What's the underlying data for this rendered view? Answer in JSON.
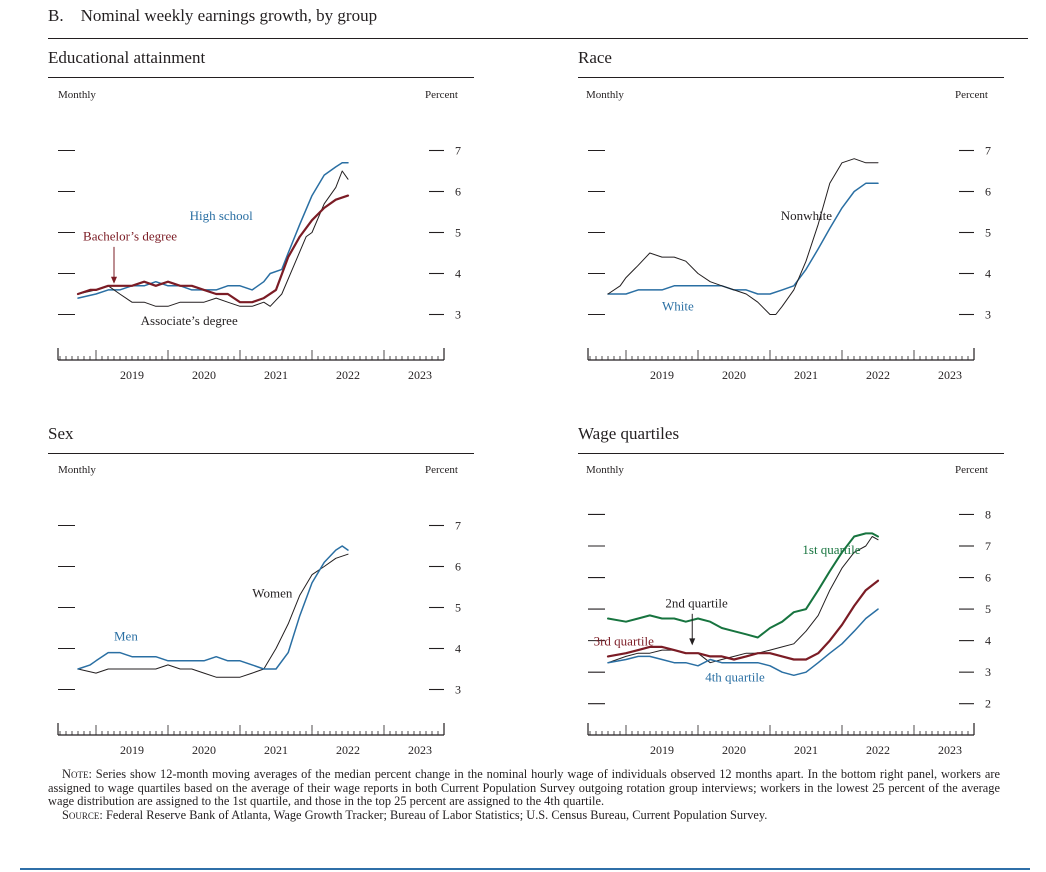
{
  "figure_title": "B. Nominal weekly earnings growth, by group",
  "notes": {
    "note_label": "Note:",
    "note_text": "Series show 12-month moving averages of the median percent change in the nominal hourly wage of individuals observed 12 months apart. In the bottom right panel, workers are assigned to wage quartiles based on the average of their wage reports in both Current Population Survey outgoing rotation group interviews; workers in the lowest 25 percent of the average wage distribution are assigned to the 1st quartile, and those in the top 25 percent are assigned to the 4th quartile.",
    "source_label": "Source:",
    "source_text": "Federal Reserve Bank of Atlanta, Wage Growth Tracker; Bureau of Labor Statistics; U.S. Census Bureau, Current Population Survey."
  },
  "chart_data": [
    {
      "type": "line",
      "title": "Educational attainment",
      "left_label": "Monthly",
      "right_label": "Percent",
      "ylim": [
        2.5,
        7.5
      ],
      "yticks": [
        3,
        4,
        5,
        6,
        7
      ],
      "xlim": [
        2018.5,
        2023.75
      ],
      "xticks": [
        "2019",
        "2020",
        "2021",
        "2022",
        "2023"
      ],
      "series": [
        {
          "name": "High school",
          "color": "#2a6fa3",
          "width": 1.5,
          "x": [
            2018.75,
            2019.0,
            2019.17,
            2019.33,
            2019.5,
            2019.67,
            2019.83,
            2020.0,
            2020.17,
            2020.33,
            2020.5,
            2020.67,
            2020.83,
            2021.0,
            2021.17,
            2021.33,
            2021.42,
            2021.58,
            2021.67,
            2021.83,
            2022.0,
            2022.17,
            2022.33,
            2022.42,
            2022.5
          ],
          "y": [
            3.4,
            3.5,
            3.6,
            3.6,
            3.7,
            3.7,
            3.8,
            3.7,
            3.7,
            3.6,
            3.6,
            3.6,
            3.7,
            3.7,
            3.6,
            3.8,
            4.0,
            4.1,
            4.5,
            5.2,
            5.9,
            6.4,
            6.6,
            6.7,
            6.7
          ]
        },
        {
          "name": "Associate’s degree",
          "color": "#231f20",
          "width": 1.0,
          "x": [
            2018.75,
            2019.0,
            2019.17,
            2019.33,
            2019.5,
            2019.67,
            2019.83,
            2020.0,
            2020.17,
            2020.33,
            2020.5,
            2020.67,
            2020.83,
            2021.0,
            2021.17,
            2021.33,
            2021.42,
            2021.58,
            2021.75,
            2021.92,
            2022.0,
            2022.17,
            2022.33,
            2022.42,
            2022.5
          ],
          "y": [
            3.5,
            3.6,
            3.7,
            3.5,
            3.3,
            3.3,
            3.2,
            3.2,
            3.3,
            3.3,
            3.3,
            3.4,
            3.3,
            3.2,
            3.2,
            3.3,
            3.2,
            3.5,
            4.2,
            4.9,
            5.0,
            5.7,
            6.1,
            6.5,
            6.3
          ]
        },
        {
          "name": "Bachelor’s degree",
          "color": "#7b1c25",
          "width": 2.2,
          "x": [
            2018.75,
            2018.92,
            2019.0,
            2019.17,
            2019.33,
            2019.5,
            2019.67,
            2019.83,
            2020.0,
            2020.17,
            2020.33,
            2020.5,
            2020.67,
            2020.83,
            2021.0,
            2021.17,
            2021.33,
            2021.5,
            2021.67,
            2021.83,
            2022.0,
            2022.17,
            2022.33,
            2022.5
          ],
          "y": [
            3.5,
            3.6,
            3.6,
            3.7,
            3.7,
            3.7,
            3.8,
            3.7,
            3.8,
            3.7,
            3.7,
            3.6,
            3.5,
            3.5,
            3.3,
            3.3,
            3.4,
            3.6,
            4.4,
            4.9,
            5.3,
            5.6,
            5.8,
            5.9
          ]
        }
      ],
      "annotations": [
        {
          "text": "High school",
          "x": 2020.3,
          "y": 5.3,
          "anchor": "start",
          "color": "#2a6fa3"
        },
        {
          "text": "Bachelor’s degree",
          "x": 2018.82,
          "y": 4.8,
          "anchor": "start",
          "color": "#7b1c25"
        },
        {
          "text": "Associate’s degree",
          "x": 2019.62,
          "y": 2.75,
          "anchor": "start",
          "color": "#231f20"
        }
      ],
      "arrows": [
        {
          "x": 2019.25,
          "y1": 4.65,
          "y2": 3.75,
          "color": "#7b1c25"
        }
      ]
    },
    {
      "type": "line",
      "title": "Race",
      "left_label": "Monthly",
      "right_label": "Percent",
      "ylim": [
        2.5,
        7.5
      ],
      "yticks": [
        3,
        4,
        5,
        6,
        7
      ],
      "xlim": [
        2018.5,
        2023.75
      ],
      "xticks": [
        "2019",
        "2020",
        "2021",
        "2022",
        "2023"
      ],
      "series": [
        {
          "name": "White",
          "color": "#2a6fa3",
          "width": 1.5,
          "x": [
            2018.75,
            2019.0,
            2019.17,
            2019.33,
            2019.5,
            2019.67,
            2019.83,
            2020.0,
            2020.17,
            2020.33,
            2020.5,
            2020.67,
            2020.83,
            2021.0,
            2021.17,
            2021.33,
            2021.5,
            2021.67,
            2021.83,
            2022.0,
            2022.17,
            2022.33,
            2022.42,
            2022.5
          ],
          "y": [
            3.5,
            3.5,
            3.6,
            3.6,
            3.6,
            3.7,
            3.7,
            3.7,
            3.7,
            3.7,
            3.6,
            3.6,
            3.5,
            3.5,
            3.6,
            3.7,
            4.1,
            4.6,
            5.1,
            5.6,
            6.0,
            6.2,
            6.2,
            6.2
          ]
        },
        {
          "name": "Nonwhite",
          "color": "#231f20",
          "width": 1.0,
          "x": [
            2018.75,
            2018.92,
            2019.0,
            2019.17,
            2019.33,
            2019.5,
            2019.67,
            2019.83,
            2020.0,
            2020.17,
            2020.33,
            2020.5,
            2020.67,
            2020.83,
            2021.0,
            2021.08,
            2021.17,
            2021.33,
            2021.5,
            2021.67,
            2021.83,
            2022.0,
            2022.17,
            2022.33,
            2022.5
          ],
          "y": [
            3.5,
            3.7,
            3.9,
            4.2,
            4.5,
            4.4,
            4.4,
            4.3,
            4.0,
            3.8,
            3.7,
            3.6,
            3.5,
            3.3,
            3.0,
            3.0,
            3.2,
            3.6,
            4.3,
            5.2,
            6.2,
            6.7,
            6.8,
            6.7,
            6.7
          ]
        }
      ],
      "annotations": [
        {
          "text": "Nonwhite",
          "x": 2021.15,
          "y": 5.3,
          "anchor": "start",
          "color": "#231f20"
        },
        {
          "text": "White",
          "x": 2019.5,
          "y": 3.1,
          "anchor": "start",
          "color": "#2a6fa3"
        }
      ],
      "arrows": []
    },
    {
      "type": "line",
      "title": "Sex",
      "left_label": "Monthly",
      "right_label": "Percent",
      "ylim": [
        2.5,
        7.5
      ],
      "yticks": [
        3,
        4,
        5,
        6,
        7
      ],
      "xlim": [
        2018.5,
        2023.75
      ],
      "xticks": [
        "2019",
        "2020",
        "2021",
        "2022",
        "2023"
      ],
      "series": [
        {
          "name": "Women",
          "color": "#231f20",
          "width": 1.0,
          "x": [
            2018.75,
            2019.0,
            2019.17,
            2019.33,
            2019.5,
            2019.67,
            2019.83,
            2020.0,
            2020.17,
            2020.33,
            2020.5,
            2020.67,
            2020.83,
            2021.0,
            2021.17,
            2021.33,
            2021.5,
            2021.67,
            2021.83,
            2022.0,
            2022.17,
            2022.33,
            2022.5
          ],
          "y": [
            3.5,
            3.4,
            3.5,
            3.5,
            3.5,
            3.5,
            3.5,
            3.6,
            3.5,
            3.5,
            3.4,
            3.3,
            3.3,
            3.3,
            3.4,
            3.5,
            4.0,
            4.6,
            5.3,
            5.8,
            6.0,
            6.2,
            6.3
          ]
        },
        {
          "name": "Men",
          "color": "#2a6fa3",
          "width": 1.5,
          "x": [
            2018.75,
            2018.92,
            2019.0,
            2019.17,
            2019.33,
            2019.5,
            2019.67,
            2019.83,
            2020.0,
            2020.17,
            2020.33,
            2020.5,
            2020.67,
            2020.83,
            2021.0,
            2021.17,
            2021.33,
            2021.5,
            2021.67,
            2021.83,
            2022.0,
            2022.17,
            2022.33,
            2022.42,
            2022.5
          ],
          "y": [
            3.5,
            3.6,
            3.7,
            3.9,
            3.9,
            3.8,
            3.8,
            3.8,
            3.7,
            3.7,
            3.7,
            3.7,
            3.8,
            3.7,
            3.7,
            3.6,
            3.5,
            3.5,
            3.9,
            4.8,
            5.6,
            6.1,
            6.4,
            6.5,
            6.4
          ]
        }
      ],
      "annotations": [
        {
          "text": "Women",
          "x": 2021.17,
          "y": 5.25,
          "anchor": "start",
          "color": "#231f20"
        },
        {
          "text": "Men",
          "x": 2019.25,
          "y": 4.2,
          "anchor": "start",
          "color": "#2a6fa3"
        }
      ],
      "arrows": []
    },
    {
      "type": "line",
      "title": "Wage quartiles",
      "left_label": "Monthly",
      "right_label": "Percent",
      "ylim": [
        1.8,
        8.3
      ],
      "yticks": [
        2,
        3,
        4,
        5,
        6,
        7,
        8
      ],
      "xlim": [
        2018.5,
        2023.75
      ],
      "xticks": [
        "2019",
        "2020",
        "2021",
        "2022",
        "2023"
      ],
      "series": [
        {
          "name": "1st quartile",
          "color": "#17743f",
          "width": 2.0,
          "x": [
            2018.75,
            2019.0,
            2019.17,
            2019.33,
            2019.5,
            2019.67,
            2019.83,
            2020.0,
            2020.17,
            2020.33,
            2020.5,
            2020.67,
            2020.83,
            2021.0,
            2021.17,
            2021.33,
            2021.5,
            2021.67,
            2021.83,
            2022.0,
            2022.17,
            2022.33,
            2022.42,
            2022.5
          ],
          "y": [
            4.7,
            4.6,
            4.7,
            4.8,
            4.7,
            4.7,
            4.6,
            4.7,
            4.6,
            4.4,
            4.3,
            4.2,
            4.1,
            4.4,
            4.6,
            4.9,
            5.0,
            5.6,
            6.2,
            6.8,
            7.3,
            7.4,
            7.4,
            7.3
          ]
        },
        {
          "name": "2nd quartile",
          "color": "#231f20",
          "width": 1.0,
          "x": [
            2018.75,
            2019.0,
            2019.17,
            2019.33,
            2019.5,
            2019.67,
            2019.83,
            2020.0,
            2020.17,
            2020.33,
            2020.5,
            2020.67,
            2020.83,
            2021.0,
            2021.17,
            2021.33,
            2021.5,
            2021.67,
            2021.83,
            2022.0,
            2022.17,
            2022.33,
            2022.42,
            2022.5
          ],
          "y": [
            3.3,
            3.5,
            3.6,
            3.6,
            3.7,
            3.7,
            3.6,
            3.6,
            3.3,
            3.4,
            3.5,
            3.6,
            3.6,
            3.7,
            3.8,
            3.9,
            4.3,
            4.8,
            5.6,
            6.3,
            6.8,
            7.0,
            7.3,
            7.2
          ]
        },
        {
          "name": "3rd quartile",
          "color": "#7b1c25",
          "width": 2.2,
          "x": [
            2018.75,
            2019.0,
            2019.17,
            2019.33,
            2019.5,
            2019.67,
            2019.83,
            2020.0,
            2020.17,
            2020.33,
            2020.5,
            2020.67,
            2020.83,
            2021.0,
            2021.17,
            2021.33,
            2021.5,
            2021.67,
            2021.83,
            2022.0,
            2022.17,
            2022.33,
            2022.5
          ],
          "y": [
            3.5,
            3.6,
            3.7,
            3.8,
            3.8,
            3.7,
            3.6,
            3.6,
            3.5,
            3.5,
            3.4,
            3.5,
            3.6,
            3.6,
            3.5,
            3.4,
            3.4,
            3.6,
            4.0,
            4.5,
            5.1,
            5.6,
            5.9
          ]
        },
        {
          "name": "4th quartile",
          "color": "#2a6fa3",
          "width": 1.5,
          "x": [
            2018.75,
            2019.0,
            2019.17,
            2019.33,
            2019.5,
            2019.67,
            2019.83,
            2020.0,
            2020.17,
            2020.33,
            2020.5,
            2020.67,
            2020.83,
            2021.0,
            2021.17,
            2021.33,
            2021.5,
            2021.67,
            2021.83,
            2022.0,
            2022.17,
            2022.33,
            2022.5
          ],
          "y": [
            3.3,
            3.4,
            3.5,
            3.5,
            3.4,
            3.3,
            3.3,
            3.2,
            3.4,
            3.3,
            3.3,
            3.3,
            3.3,
            3.2,
            3.0,
            2.9,
            3.0,
            3.3,
            3.6,
            3.9,
            4.3,
            4.7,
            5.0
          ]
        }
      ],
      "annotations": [
        {
          "text": "1st quartile",
          "x": 2021.45,
          "y": 6.75,
          "anchor": "start",
          "color": "#17743f"
        },
        {
          "text": "2nd quartile",
          "x": 2019.98,
          "y": 5.05,
          "anchor": "middle",
          "color": "#231f20"
        },
        {
          "text": "3rd quartile",
          "x": 2018.55,
          "y": 3.85,
          "anchor": "start",
          "color": "#7b1c25"
        },
        {
          "text": "4th quartile",
          "x": 2020.1,
          "y": 2.7,
          "anchor": "start",
          "color": "#2a6fa3"
        }
      ],
      "arrows": [
        {
          "x": 2019.92,
          "y1": 4.85,
          "y2": 3.85,
          "color": "#231f20"
        }
      ]
    }
  ]
}
